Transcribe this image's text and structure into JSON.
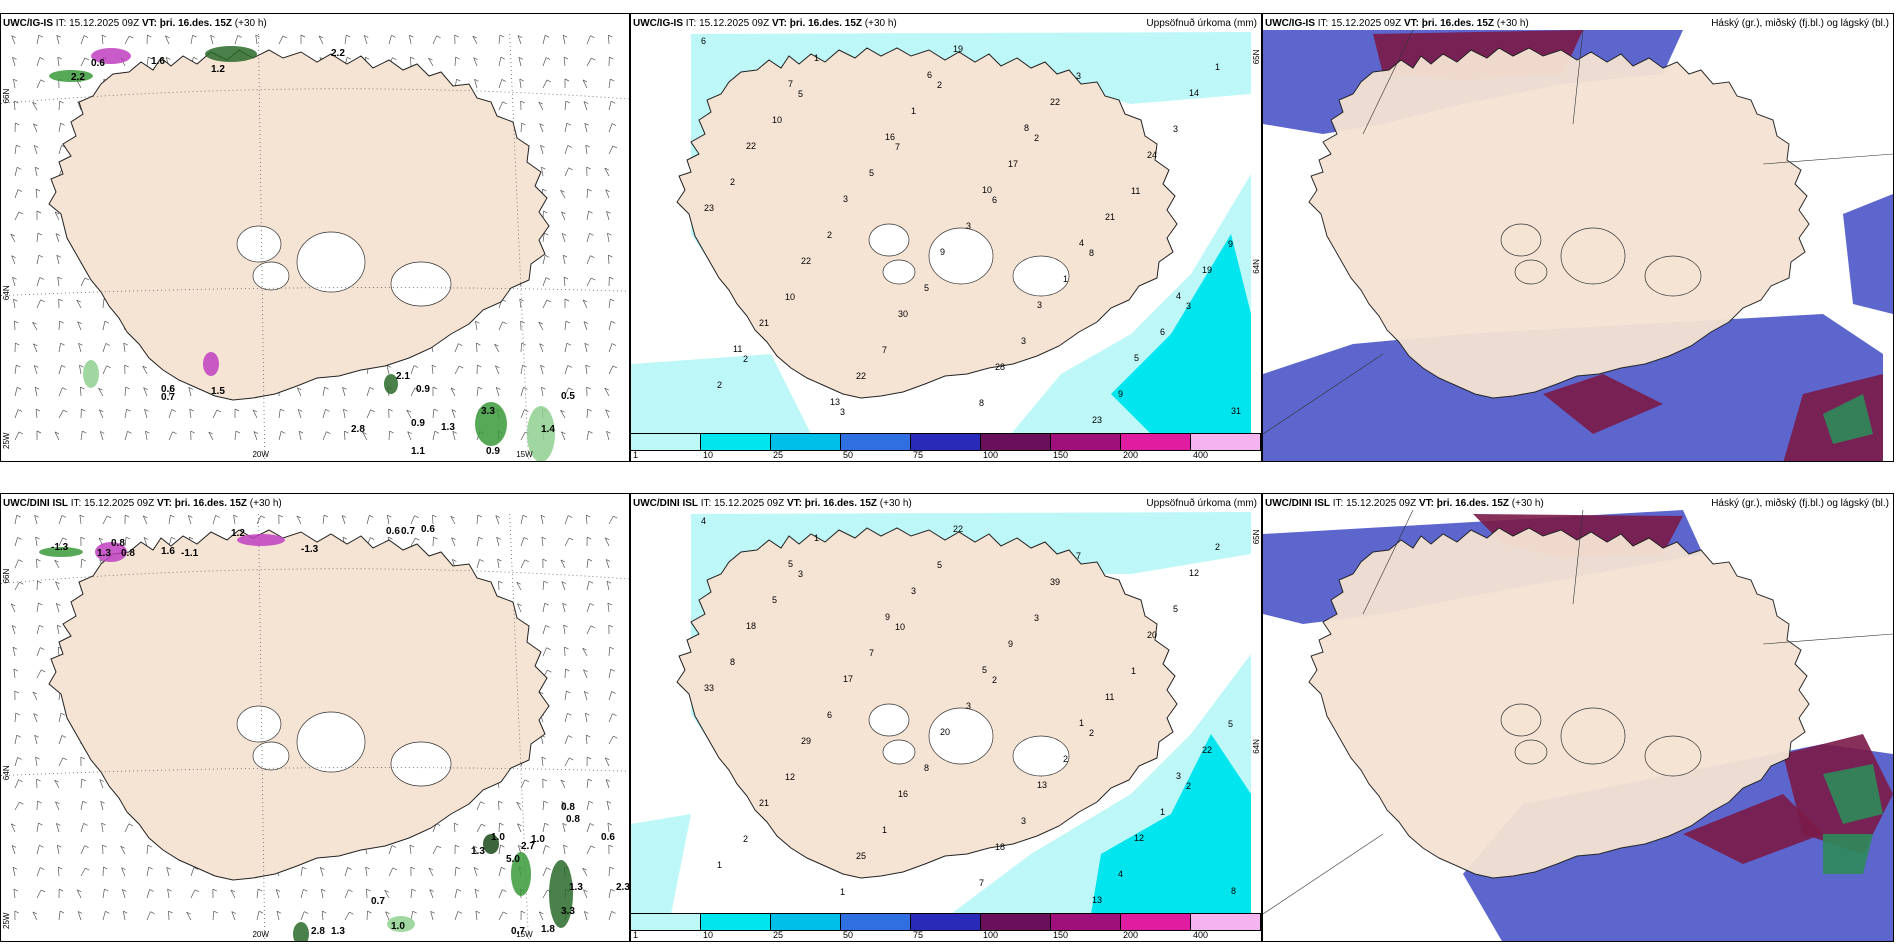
{
  "panels": [
    {
      "id": "p1",
      "model": "UWC/IG-IS",
      "it_label": "IT:",
      "it_value": "15.12.2025 09Z",
      "vt_label": "VT:",
      "vt_value": "þri. 16.des. 15Z",
      "lead": "(+30 h)",
      "right_title": "",
      "type": "wind",
      "labels": [
        "2.2",
        "0.6",
        "1.6",
        "1.2",
        "2.2",
        "0.6",
        "0.7",
        "1.5",
        "2.1",
        "0.9",
        "0.9",
        "1.3",
        "3.3",
        "1.4",
        "0.5",
        "1.1",
        "0.9",
        "2.8"
      ],
      "axis": {
        "lat1": "66N",
        "lat2": "64N",
        "lon1": "25W",
        "lon2": "20W",
        "lon3": "15W"
      }
    },
    {
      "id": "p2",
      "model": "UWC/IG-IS",
      "it_label": "IT:",
      "it_value": "15.12.2025 09Z",
      "vt_label": "VT:",
      "vt_value": "þri. 16.des. 15Z",
      "lead": "(+30 h)",
      "right_title": "Uppsöfnuð úrkoma (mm)",
      "type": "precip",
      "labels": [
        "6",
        "5",
        "7",
        "6",
        "8",
        "3",
        "2",
        "3",
        "2",
        "2",
        "11",
        "9",
        "10",
        "7",
        "8",
        "3",
        "3",
        "2",
        "2",
        "5",
        "3",
        "9",
        "1",
        "10",
        "5",
        "3",
        "1",
        "6",
        "2",
        "1",
        "1",
        "17",
        "21",
        "19",
        "21",
        "22",
        "19",
        "22",
        "24",
        "23",
        "22",
        "30",
        "28",
        "23",
        "14",
        "22",
        "3",
        "9",
        "3",
        "5",
        "31",
        "7",
        "16",
        "10",
        "4",
        "4",
        "11",
        "13",
        "6",
        "8"
      ],
      "colorbar": {
        "ticks": [
          "1",
          "10",
          "25",
          "50",
          "75",
          "100",
          "150",
          "200",
          "400"
        ],
        "colors": [
          "#bdf7f7",
          "#00e5ee",
          "#00bfe8",
          "#2f6fe0",
          "#2a2ab8",
          "#6a0f5a",
          "#a0107a",
          "#e01ca0",
          "#f3b4f0"
        ]
      },
      "axis": {
        "lat1": "65N",
        "lat2": "64N"
      }
    },
    {
      "id": "p3",
      "model": "UWC/IG-IS",
      "it_label": "IT:",
      "it_value": "15.12.2025 09Z",
      "vt_label": "VT:",
      "vt_value": "þri. 16.des. 15Z",
      "lead": "(+30 h)",
      "right_title": "Háský (gr.), miðský (fj.bl.) og lágský (bl.)",
      "type": "cloud"
    },
    {
      "id": "p4",
      "model": "UWC/DINI ISL",
      "it_label": "IT:",
      "it_value": "15.12.2025 09Z",
      "vt_label": "VT:",
      "vt_value": "þri. 16.des. 15Z",
      "lead": "(+30 h)",
      "right_title": "",
      "type": "wind",
      "labels": [
        "-1.3",
        "0.8",
        "1.3",
        "0.8",
        "1.6",
        "-1.1",
        "-1.3",
        "1.2",
        "0.6",
        "0.7",
        "0.6",
        "0.8",
        "0.8",
        "1.0",
        "2.7",
        "1.0",
        "0.6",
        "1.3",
        "5.0",
        "1.3",
        "3.3",
        "1.8",
        "2.3",
        "0.7",
        "1.0",
        "2.8",
        "1.3",
        "0.7"
      ],
      "axis": {
        "lat1": "66N",
        "lat2": "64N",
        "lon1": "25W",
        "lon2": "20W",
        "lon3": "15W"
      }
    },
    {
      "id": "p5",
      "model": "UWC/DINI ISL",
      "it_label": "IT:",
      "it_value": "15.12.2025 09Z",
      "vt_label": "VT:",
      "vt_value": "þri. 16.des. 15Z",
      "lead": "(+30 h)",
      "right_title": "Uppsöfnuð úrkoma (mm)",
      "type": "precip",
      "labels": [
        "4",
        "3",
        "10",
        "2",
        "2",
        "2",
        "2",
        "1",
        "5",
        "3",
        "1",
        "5",
        "12",
        "1",
        "7",
        "7",
        "5",
        "8",
        "6",
        "8",
        "3",
        "4",
        "2",
        "5",
        "7",
        "3",
        "2",
        "1",
        "1",
        "1",
        "3",
        "9",
        "11",
        "22",
        "21",
        "25",
        "22",
        "39",
        "20",
        "33",
        "29",
        "16",
        "18",
        "13",
        "12",
        "18",
        "17",
        "20",
        "13",
        "12",
        "8",
        "5",
        "9",
        "5",
        "1",
        "3"
      ],
      "colorbar": {
        "ticks": [
          "1",
          "10",
          "25",
          "50",
          "75",
          "100",
          "150",
          "200",
          "400"
        ],
        "colors": [
          "#bdf7f7",
          "#00e5ee",
          "#00bfe8",
          "#2f6fe0",
          "#2a2ab8",
          "#6a0f5a",
          "#a0107a",
          "#e01ca0",
          "#f3b4f0"
        ]
      },
      "axis": {
        "lat1": "65N",
        "lat2": "64N"
      }
    },
    {
      "id": "p6",
      "model": "UWC/DINI ISL",
      "it_label": "IT:",
      "it_value": "15.12.2025 09Z",
      "vt_label": "VT:",
      "vt_value": "þri. 16.des. 15Z",
      "lead": "(+30 h)",
      "right_title": "Háský (gr.), miðský (fj.bl.) og lágský (bl.)",
      "type": "cloud"
    }
  ],
  "colors": {
    "land": "#f5e3d3",
    "precip_light": "#bdf7f7",
    "precip_mid": "#00e5ee",
    "cloud_low": "#4a55c8",
    "cloud_mid": "#7a1a48",
    "cloud_high": "#2e8a5a",
    "wind_green": "#3a9a3a",
    "wind_magenta": "#c040c0"
  }
}
